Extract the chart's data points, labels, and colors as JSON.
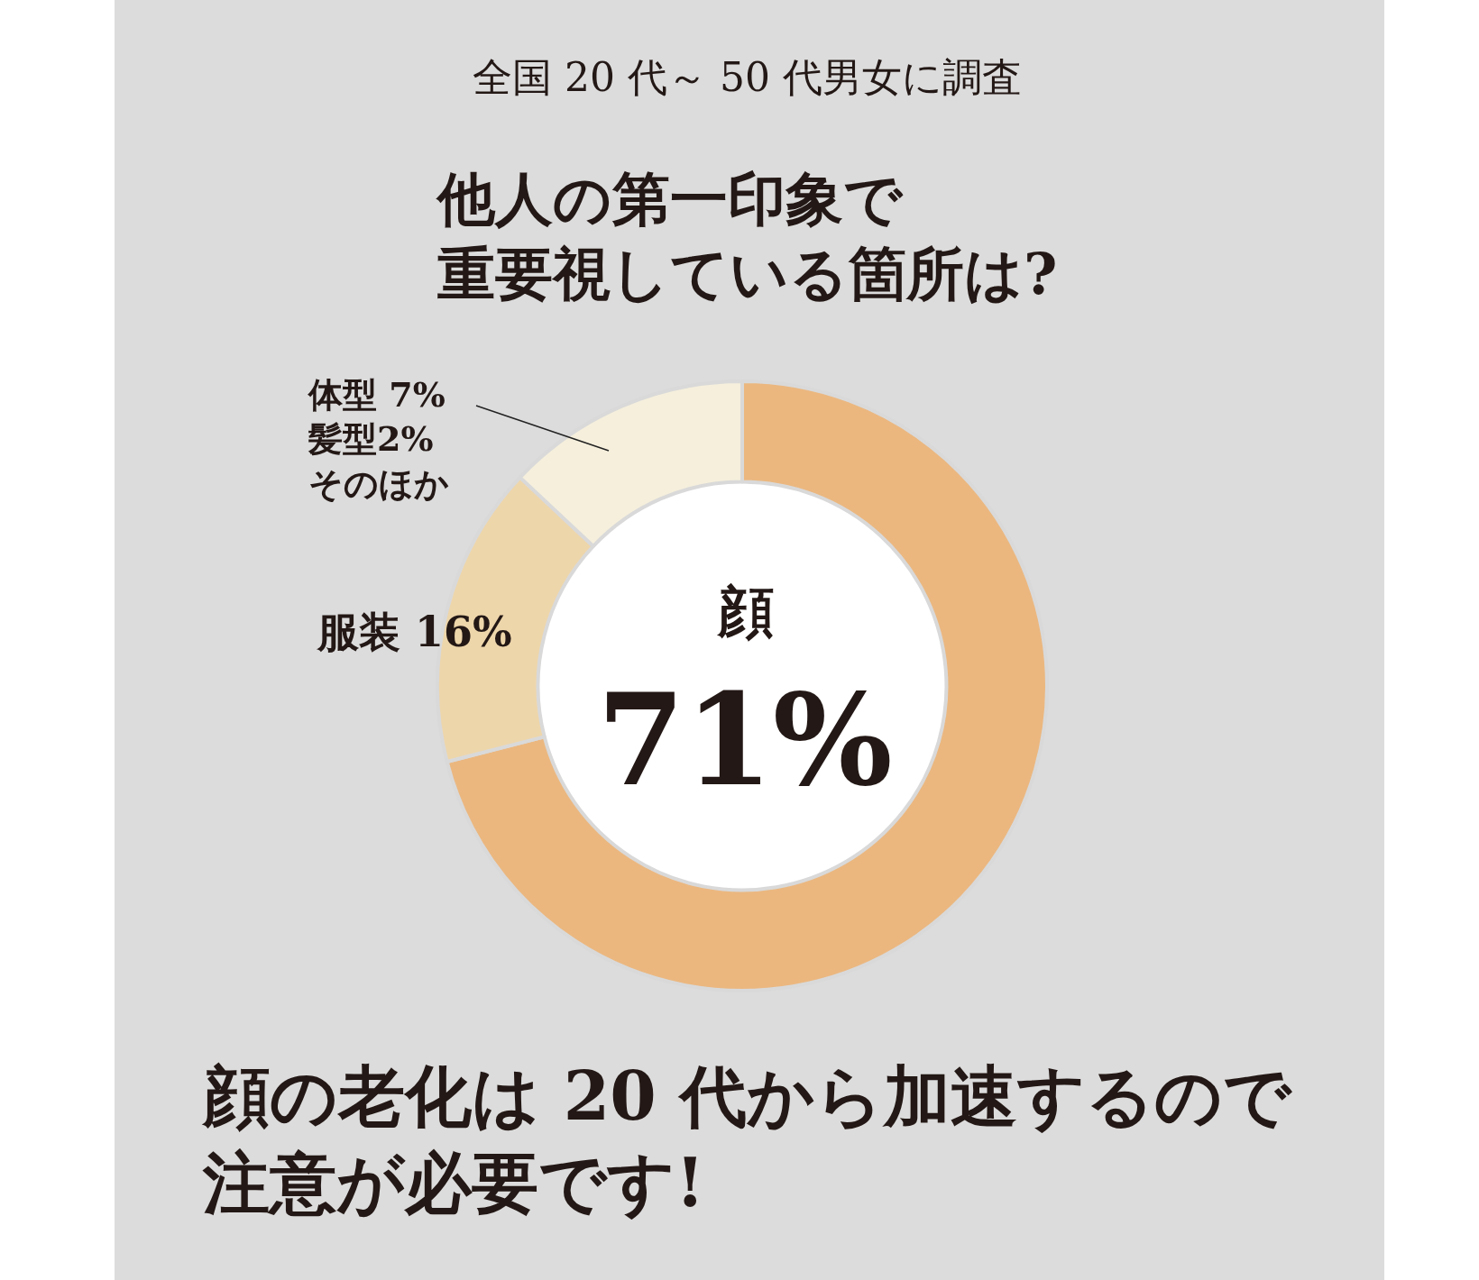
{
  "chart_data": {
    "type": "donut",
    "subtitle": "全国 20 代～ 50 代男女に調査",
    "title": "他人の第一印象で重要視している箇所は?",
    "categories": [
      "顔",
      "服装",
      "体型 7%\n髪型2%\nそのほか"
    ],
    "values": [
      71,
      16,
      13
    ],
    "value_labels": [
      "71%",
      "16%",
      null
    ],
    "colors": [
      "#ebb77f",
      "#eed6ab",
      "#f5efdc"
    ],
    "annotations": [
      "顔の老化は 20 代から加速するので注意が必要です!"
    ],
    "legend": false
  }
}
